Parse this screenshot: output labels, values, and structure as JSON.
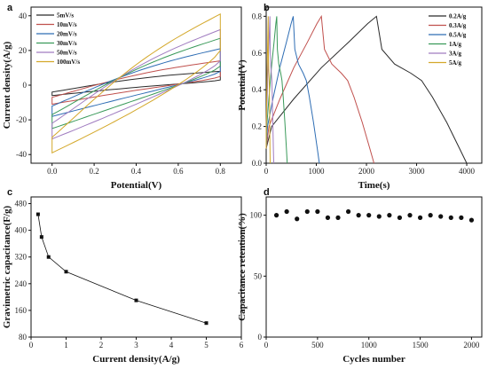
{
  "chart_data": [
    {
      "panel": "a",
      "type": "line",
      "xlabel": "Potential(V)",
      "ylabel": "Current density(A/g)",
      "xlim": [
        -0.1,
        0.9
      ],
      "ylim": [
        -45,
        45
      ],
      "xticks": [
        "0.0",
        "0.2",
        "0.4",
        "0.6",
        "0.8"
      ],
      "yticks": [
        "-40",
        "-20",
        "0",
        "20",
        "40"
      ],
      "legend_position": "top-left",
      "series": [
        {
          "name": "5mV/s",
          "color": "#2b2b2b",
          "lower_start": -6,
          "upper_end_top": 8,
          "lower_end": 3,
          "upper_start": -4,
          "mid_lower": 0,
          "mid_upper": 5
        },
        {
          "name": "10mV/s",
          "color": "#c0504d",
          "lower_start": -11,
          "upper_end_top": 14,
          "lower_end": 5,
          "upper_start": -7,
          "mid_lower": -1,
          "mid_upper": 8
        },
        {
          "name": "20mV/s",
          "color": "#2e6db4",
          "lower_start": -18,
          "upper_end_top": 21,
          "lower_end": 8,
          "upper_start": -12,
          "mid_lower": -3,
          "mid_upper": 11
        },
        {
          "name": "30mV/s",
          "color": "#3a9a5a",
          "lower_start": -25,
          "upper_end_top": 27,
          "lower_end": 11,
          "upper_start": -17,
          "mid_lower": -5,
          "mid_upper": 13
        },
        {
          "name": "50mV/s",
          "color": "#a07cc0",
          "lower_start": -31,
          "upper_end_top": 32,
          "lower_end": 14,
          "upper_start": -22,
          "mid_lower": -7,
          "mid_upper": 15
        },
        {
          "name": "100mV/s",
          "color": "#d4a82a",
          "lower_start": -39,
          "upper_end_top": 41,
          "lower_end": 20,
          "upper_start": -30,
          "mid_lower": -10,
          "mid_upper": 18
        }
      ]
    },
    {
      "panel": "b",
      "type": "line",
      "xlabel": "Time(s)",
      "ylabel": "Potential(V)",
      "xlim": [
        0,
        4300
      ],
      "ylim": [
        0,
        0.85
      ],
      "xticks": [
        "0",
        "1000",
        "2000",
        "3000",
        "4000"
      ],
      "yticks": [
        "0.0",
        "0.2",
        "0.4",
        "0.6",
        "0.8"
      ],
      "legend_position": "top-right",
      "series": [
        {
          "name": "0.2A/g",
          "color": "#2b2b2b",
          "charge_end": 2200,
          "discharge_end": 4000
        },
        {
          "name": "0.3A/g",
          "color": "#c0504d",
          "charge_end": 1100,
          "discharge_end": 2150
        },
        {
          "name": "0.5A/g",
          "color": "#2e6db4",
          "charge_end": 540,
          "discharge_end": 1060
        },
        {
          "name": "1A/g",
          "color": "#3a9a5a",
          "charge_end": 210,
          "discharge_end": 420
        },
        {
          "name": "3A/g",
          "color": "#a07cc0",
          "charge_end": 75,
          "discharge_end": 150
        },
        {
          "name": "5A/g",
          "color": "#d4a82a",
          "charge_end": 40,
          "discharge_end": 80
        }
      ]
    },
    {
      "panel": "c",
      "type": "line",
      "xlabel": "Current density(A/g)",
      "ylabel": "Gravimetric capacitance(F/g)",
      "xlim": [
        0,
        6
      ],
      "ylim": [
        80,
        500
      ],
      "xticks": [
        "0",
        "1",
        "2",
        "3",
        "4",
        "5",
        "6"
      ],
      "yticks": [
        "80",
        "160",
        "240",
        "320",
        "400",
        "480"
      ],
      "x": [
        0.2,
        0.3,
        0.5,
        1,
        3,
        5
      ],
      "y": [
        448,
        380,
        320,
        276,
        190,
        122
      ]
    },
    {
      "panel": "d",
      "type": "scatter",
      "xlabel": "Cycles number",
      "ylabel": "Capacitance retention(%)",
      "xlim": [
        0,
        2100
      ],
      "ylim": [
        0,
        115
      ],
      "xticks": [
        "0",
        "500",
        "1000",
        "1500",
        "2000"
      ],
      "yticks": [
        "0",
        "50",
        "100"
      ],
      "x": [
        100,
        200,
        300,
        400,
        500,
        600,
        700,
        800,
        900,
        1000,
        1100,
        1200,
        1300,
        1400,
        1500,
        1600,
        1700,
        1800,
        1900,
        2000
      ],
      "y": [
        100,
        103,
        97,
        103,
        103,
        98,
        98,
        103,
        100,
        100,
        99,
        100,
        98,
        100,
        98,
        100,
        99,
        98,
        98,
        96
      ]
    }
  ]
}
